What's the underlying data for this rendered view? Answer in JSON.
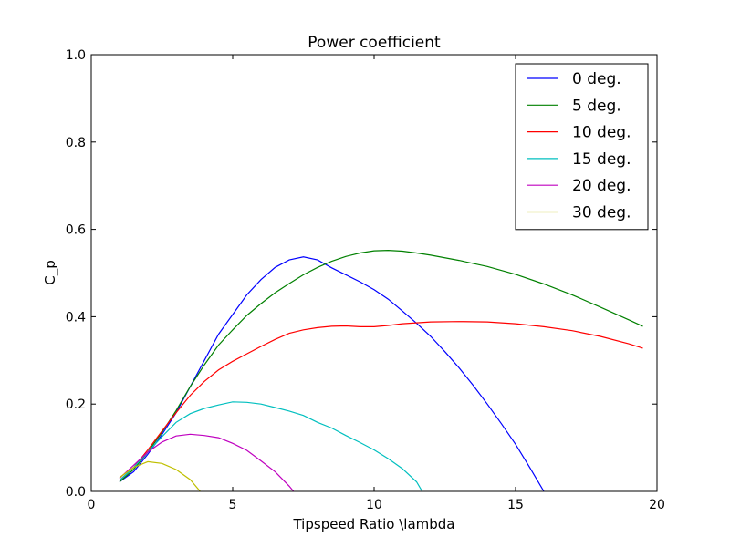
{
  "chart_data": {
    "type": "line",
    "title": "Power coefficient",
    "xlabel": "Tipspeed Ratio \\lambda",
    "ylabel": "C_p",
    "xlim": [
      0,
      20
    ],
    "ylim": [
      0,
      1.0
    ],
    "x_ticks": [
      "0",
      "5",
      "10",
      "15",
      "20"
    ],
    "y_ticks": [
      "0.0",
      "0.2",
      "0.4",
      "0.6",
      "0.8",
      "1.0"
    ],
    "grid": false,
    "legend_position": "top-right",
    "series": [
      {
        "name": "0 deg.",
        "color": "#0000ff",
        "x": [
          1.0,
          1.5,
          2.0,
          2.5,
          3.0,
          3.5,
          4.0,
          4.5,
          5.0,
          5.5,
          6.0,
          6.5,
          7.0,
          7.5,
          8.0,
          8.5,
          9.0,
          9.5,
          10.0,
          10.5,
          11.0,
          11.5,
          12.0,
          12.5,
          13.0,
          13.5,
          14.0,
          14.5,
          15.0,
          15.5,
          16.0
        ],
        "y": [
          0.022,
          0.045,
          0.085,
          0.13,
          0.18,
          0.24,
          0.3,
          0.36,
          0.405,
          0.45,
          0.485,
          0.513,
          0.53,
          0.537,
          0.53,
          0.512,
          0.496,
          0.48,
          0.462,
          0.44,
          0.413,
          0.385,
          0.355,
          0.32,
          0.283,
          0.243,
          0.2,
          0.155,
          0.108,
          0.055,
          0.0
        ]
      },
      {
        "name": "5 deg.",
        "color": "#008000",
        "x": [
          1.0,
          1.5,
          2.0,
          2.5,
          3.0,
          3.5,
          4.0,
          4.5,
          5.0,
          5.5,
          6.0,
          6.5,
          7.0,
          7.5,
          8.0,
          8.5,
          9.0,
          9.5,
          10.0,
          10.5,
          11.0,
          11.5,
          12.0,
          13.0,
          14.0,
          15.0,
          16.0,
          17.0,
          18.0,
          19.0,
          19.5
        ],
        "y": [
          0.022,
          0.05,
          0.09,
          0.135,
          0.185,
          0.24,
          0.29,
          0.335,
          0.37,
          0.403,
          0.43,
          0.455,
          0.476,
          0.496,
          0.513,
          0.527,
          0.538,
          0.546,
          0.551,
          0.552,
          0.55,
          0.546,
          0.541,
          0.529,
          0.515,
          0.497,
          0.475,
          0.45,
          0.422,
          0.393,
          0.378
        ]
      },
      {
        "name": "10 deg.",
        "color": "#ff0000",
        "x": [
          1.0,
          1.5,
          2.0,
          2.5,
          3.0,
          3.5,
          4.0,
          4.5,
          5.0,
          5.5,
          6.0,
          6.5,
          7.0,
          7.5,
          8.0,
          8.5,
          9.0,
          9.5,
          10.0,
          10.5,
          11.0,
          12.0,
          13.0,
          14.0,
          15.0,
          16.0,
          17.0,
          18.0,
          19.0,
          19.5
        ],
        "y": [
          0.025,
          0.055,
          0.095,
          0.138,
          0.18,
          0.22,
          0.252,
          0.278,
          0.298,
          0.315,
          0.332,
          0.348,
          0.362,
          0.37,
          0.375,
          0.378,
          0.379,
          0.377,
          0.377,
          0.38,
          0.384,
          0.388,
          0.389,
          0.388,
          0.384,
          0.377,
          0.368,
          0.355,
          0.338,
          0.328
        ]
      },
      {
        "name": "15 deg.",
        "color": "#00bfbf",
        "x": [
          1.0,
          1.5,
          2.0,
          2.5,
          3.0,
          3.5,
          4.0,
          4.5,
          5.0,
          5.5,
          6.0,
          6.5,
          7.0,
          7.5,
          8.0,
          8.5,
          9.0,
          9.5,
          10.0,
          10.5,
          11.0,
          11.5,
          11.7
        ],
        "y": [
          0.025,
          0.055,
          0.09,
          0.125,
          0.158,
          0.178,
          0.19,
          0.198,
          0.205,
          0.204,
          0.2,
          0.192,
          0.184,
          0.174,
          0.158,
          0.145,
          0.128,
          0.112,
          0.095,
          0.075,
          0.052,
          0.022,
          0.0
        ]
      },
      {
        "name": "20 deg.",
        "color": "#bf00bf",
        "x": [
          1.0,
          1.5,
          2.0,
          2.5,
          3.0,
          3.5,
          4.0,
          4.5,
          5.0,
          5.5,
          6.0,
          6.5,
          7.0,
          7.15
        ],
        "y": [
          0.03,
          0.06,
          0.09,
          0.113,
          0.127,
          0.131,
          0.128,
          0.123,
          0.11,
          0.094,
          0.07,
          0.045,
          0.012,
          0.0
        ]
      },
      {
        "name": "30 deg.",
        "color": "#bfbf00",
        "x": [
          1.0,
          1.5,
          2.0,
          2.5,
          3.0,
          3.5,
          3.85
        ],
        "y": [
          0.032,
          0.055,
          0.068,
          0.064,
          0.05,
          0.027,
          0.0
        ]
      }
    ]
  }
}
